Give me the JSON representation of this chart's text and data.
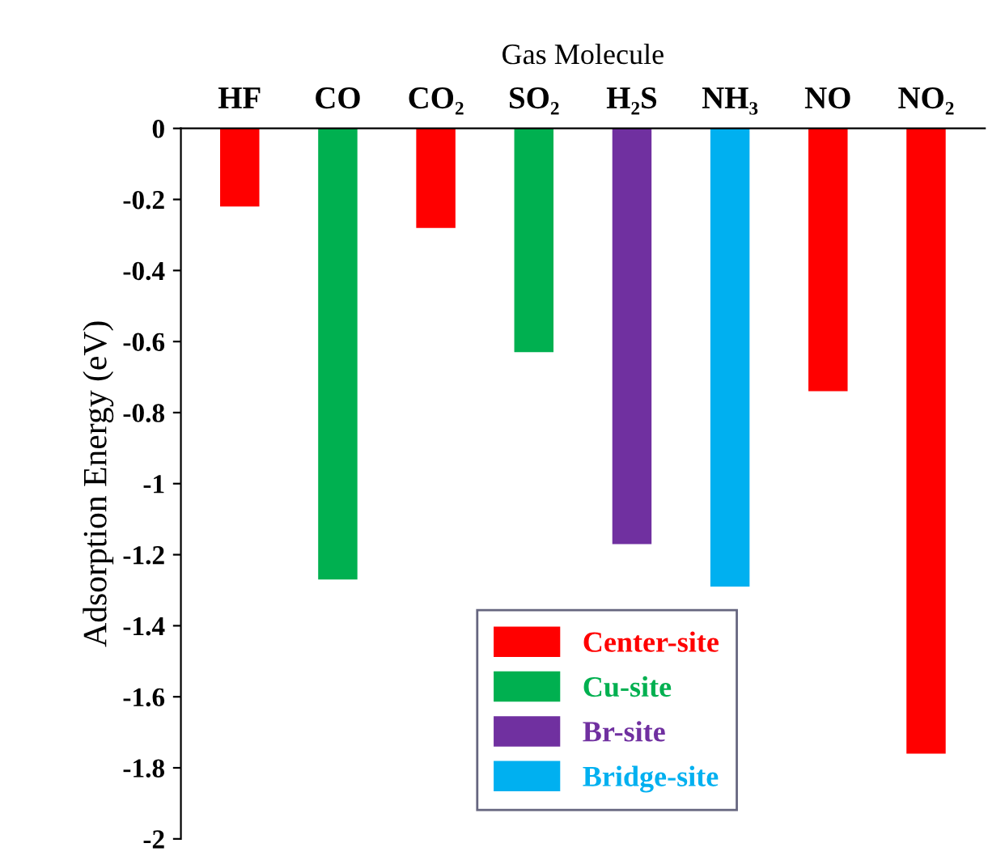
{
  "chart_data": {
    "type": "bar",
    "xlabel": "Gas Molecule",
    "ylabel": "Adsorption Energy (eV)",
    "categories": [
      "HF",
      "CO",
      "CO₂",
      "SO₂",
      "H₂S",
      "NH₃",
      "NO",
      "NO₂"
    ],
    "series": [
      {
        "name": "Center-site",
        "color": "#ff0000",
        "values": [
          -0.22,
          null,
          -0.28,
          null,
          null,
          null,
          -0.74,
          -1.76
        ]
      },
      {
        "name": "Cu-site",
        "color": "#00b050",
        "values": [
          null,
          -1.27,
          null,
          -0.63,
          null,
          null,
          null,
          null
        ]
      },
      {
        "name": "Br-site",
        "color": "#7030a0",
        "values": [
          null,
          null,
          null,
          null,
          -1.17,
          null,
          null,
          null
        ]
      },
      {
        "name": "Bridge-site",
        "color": "#00b0f0",
        "values": [
          null,
          null,
          null,
          null,
          null,
          -1.29,
          null,
          null
        ]
      }
    ],
    "ylim": [
      -2,
      0
    ],
    "yticks": [
      -2,
      -1.8,
      -1.6,
      -1.4,
      -1.2,
      -1,
      -0.8,
      -0.6,
      -0.4,
      -0.2,
      0
    ],
    "legend": "bottom",
    "grid": false
  }
}
